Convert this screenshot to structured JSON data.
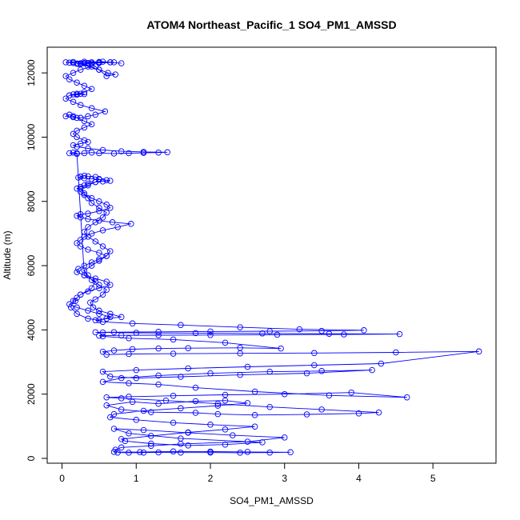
{
  "chart_data": {
    "type": "scatter",
    "title": "ATOM4 Northeast_Pacific_1 SO4_PM1_AMSSD",
    "xlabel": "SO4_PM1_AMSSD",
    "ylabel": "Altitude (m)",
    "xlim": [
      -0.2,
      5.85
    ],
    "ylim": [
      -150,
      12800
    ],
    "xticks": [
      "0",
      "1",
      "2",
      "3",
      "4",
      "5"
    ],
    "yticks": [
      "0",
      "2000",
      "4000",
      "6000",
      "8000",
      "10000",
      "12000"
    ],
    "grid": false,
    "series_color": "#0000ff",
    "marker": "open-circle",
    "connected": true,
    "series": [
      {
        "x": [
          0.75,
          0.9,
          1.1,
          1.3,
          1.6,
          2.0,
          2.4,
          2.8,
          3.08,
          2.5,
          2.0,
          1.5,
          1.05,
          0.7,
          0.72,
          0.8,
          1.2,
          1.6,
          2.5,
          3.0,
          2.3,
          1.7,
          1.1,
          0.7,
          0.9,
          1.6,
          2.7,
          2.2,
          1.7,
          1.2,
          0.85,
          0.8,
          1.2,
          1.7,
          2.2,
          2.6,
          2.0,
          1.5,
          1.0,
          0.65,
          0.7,
          1.1,
          1.6,
          2.1,
          2.5,
          2.2,
          1.8,
          1.3,
          0.95,
          0.6,
          0.8,
          1.2,
          1.8,
          2.1,
          2.6,
          3.3,
          4.0,
          4.27,
          3.5,
          2.8,
          2.1,
          1.4,
          0.8,
          0.6,
          0.9,
          1.5,
          2.2,
          3.0,
          3.9,
          4.65,
          3.6,
          2.6,
          1.8,
          1.3,
          0.9,
          0.55,
          0.8,
          1.3,
          2.0,
          2.8,
          3.5,
          4.18,
          3.3,
          2.4,
          1.6,
          1.0,
          0.65,
          0.55,
          1.0,
          1.7,
          2.5,
          3.4,
          4.3,
          5.62,
          4.5,
          3.4,
          2.4,
          1.5,
          0.9,
          0.6,
          0.55,
          0.7,
          0.95,
          1.3,
          1.7,
          2.4,
          2.95,
          2.2,
          1.5,
          0.9,
          0.55,
          0.5,
          0.8,
          1.3,
          2.0,
          2.9,
          3.8,
          4.55,
          3.6,
          2.7,
          1.8,
          1.0,
          0.55,
          0.45,
          0.7,
          1.3,
          2.0,
          2.8,
          3.5,
          4.07,
          3.2,
          2.4,
          1.6,
          0.95,
          0.55,
          0.45,
          0.6,
          0.8,
          0.65,
          0.5,
          0.42,
          0.38,
          0.45,
          0.55,
          0.6,
          0.5,
          0.4,
          0.35,
          0.3,
          0.4,
          0.5,
          0.6,
          0.65,
          0.55,
          0.45,
          0.35,
          0.3,
          0.35,
          0.45,
          0.55,
          0.6,
          0.5,
          0.4,
          0.35,
          0.3,
          0.25,
          0.35,
          0.45,
          0.5,
          0.45,
          0.35,
          0.3,
          0.25,
          0.22,
          0.3,
          0.4,
          0.5,
          0.6,
          0.65,
          0.55,
          0.45,
          0.35,
          0.3,
          0.25,
          0.2,
          0.25,
          0.3,
          0.4,
          0.5,
          0.6,
          0.65,
          0.5,
          0.35,
          0.25,
          0.2,
          0.25,
          0.35,
          0.5,
          0.68,
          0.93,
          0.75,
          0.55,
          0.4,
          0.3,
          0.25,
          0.2,
          0.25,
          0.35,
          0.5,
          0.6,
          0.5,
          0.4,
          0.3,
          0.22,
          0.2,
          0.3,
          0.45,
          0.6,
          0.65,
          0.5,
          0.35,
          0.25,
          0.2,
          0.18,
          0.1,
          0.2,
          0.35,
          0.5,
          0.65,
          0.5,
          0.35,
          0.2,
          0.12,
          0.15,
          0.25,
          0.4,
          0.45,
          0.3,
          0.2,
          0.15,
          0.1,
          0.2,
          0.3,
          0.4,
          0.5,
          0.7,
          0.9,
          1.1,
          1.3,
          1.42,
          1.1,
          0.8,
          0.55,
          0.35,
          0.2,
          0.15,
          0.25,
          0.35,
          0.3,
          0.2,
          0.15,
          0.2,
          0.3,
          0.4,
          0.3,
          0.2,
          0.15,
          0.1,
          0.05,
          0.15,
          0.25,
          0.35,
          0.45,
          0.58,
          0.4,
          0.25,
          0.15,
          0.05,
          0.1,
          0.2,
          0.3,
          0.25,
          0.15,
          0.1,
          0.2,
          0.3,
          0.4,
          0.3,
          0.2,
          0.1,
          0.05,
          0.15,
          0.25,
          0.4,
          0.25,
          0.15,
          0.1,
          0.05,
          0.15,
          0.3,
          0.5,
          0.65,
          0.5,
          0.35,
          0.2,
          0.22,
          0.3,
          0.5,
          0.7,
          0.55,
          0.4,
          0.3,
          0.2,
          0.25,
          0.35,
          0.5,
          0.62,
          0.72,
          0.6,
          0.5,
          0.45,
          0.4,
          0.35,
          0.5,
          0.65,
          0.8
        ],
        "y": [
          180,
          175,
          180,
          185,
          180,
          180,
          175,
          180,
          190,
          200,
          210,
          215,
          195,
          200,
          270,
          340,
          390,
          450,
          520,
          650,
          720,
          800,
          880,
          920,
          780,
          620,
          500,
          430,
          400,
          460,
          540,
          600,
          700,
          810,
          900,
          990,
          1050,
          1110,
          1200,
          1280,
          1380,
          1480,
          1560,
          1640,
          1720,
          1800,
          1780,
          1700,
          1760,
          1650,
          1520,
          1440,
          1420,
          1380,
          1350,
          1370,
          1400,
          1430,
          1520,
          1600,
          1700,
          1800,
          1870,
          1900,
          1920,
          1950,
          1980,
          2000,
          2050,
          1900,
          1960,
          2080,
          2200,
          2300,
          2340,
          2380,
          2500,
          2580,
          2650,
          2700,
          2720,
          2750,
          2650,
          2600,
          2540,
          2500,
          2550,
          2700,
          2750,
          2800,
          2850,
          2900,
          2950,
          3330,
          3300,
          3280,
          3270,
          3260,
          3250,
          3230,
          3320,
          3360,
          3400,
          3420,
          3430,
          3440,
          3420,
          3600,
          3700,
          3740,
          3800,
          3820,
          3830,
          3835,
          3840,
          3850,
          3860,
          3870,
          3880,
          3890,
          3900,
          3910,
          3920,
          3925,
          3930,
          3940,
          3950,
          3960,
          3970,
          3990,
          4020,
          4080,
          4150,
          4200,
          4250,
          4300,
          4350,
          4400,
          4500,
          4600,
          4700,
          4850,
          4950,
          5100,
          5250,
          5400,
          5550,
          5700,
          5850,
          6000,
          6150,
          6300,
          6450,
          6600,
          6750,
          6900,
          7050,
          7200,
          7350,
          7500,
          7650,
          7800,
          7950,
          8100,
          8250,
          8400,
          8500,
          8600,
          8700,
          8760,
          8780,
          8800,
          8770,
          8740,
          8720,
          8700,
          8680,
          8660,
          8640,
          8620,
          8600,
          8550,
          8500,
          8450,
          8400,
          8300,
          8200,
          8100,
          8000,
          7900,
          7800,
          7700,
          7620,
          7600,
          7550,
          7500,
          7450,
          7400,
          7350,
          7300,
          7200,
          7100,
          7000,
          6900,
          6800,
          6700,
          6600,
          6500,
          6400,
          6300,
          6200,
          6100,
          6000,
          5900,
          5800,
          5700,
          5600,
          5500,
          5400,
          5300,
          5200,
          5100,
          5000,
          4900,
          4800,
          4700,
          4600,
          4500,
          4400,
          4300,
          4350,
          4500,
          4700,
          4900,
          5100,
          5300,
          5500,
          5700,
          9500,
          9520,
          9500,
          9480,
          9500,
          9520,
          9500,
          9490,
          9500,
          9510,
          9520,
          9530,
          9540,
          9560,
          9600,
          9650,
          9700,
          9750,
          9800,
          9850,
          9900,
          10000,
          10100,
          10200,
          10300,
          10400,
          10500,
          10600,
          10650,
          10700,
          10650,
          10620,
          10600,
          10650,
          10700,
          10800,
          10900,
          11000,
          11100,
          11200,
          11300,
          11320,
          11340,
          11350,
          11330,
          11300,
          11350,
          11400,
          11500,
          11600,
          11700,
          11800,
          11900,
          12000,
          12100,
          12200,
          12300,
          12310,
          12320,
          12330,
          12340,
          12350,
          12340,
          12330,
          12320,
          12300,
          12290,
          12280,
          12300,
          12310,
          12330,
          12350,
          12330,
          12310,
          12290,
          12280,
          12200,
          12100,
          12000,
          11950,
          11900,
          12100,
          12200,
          12300,
          12310,
          12320,
          12330,
          12300
        ]
      }
    ]
  }
}
